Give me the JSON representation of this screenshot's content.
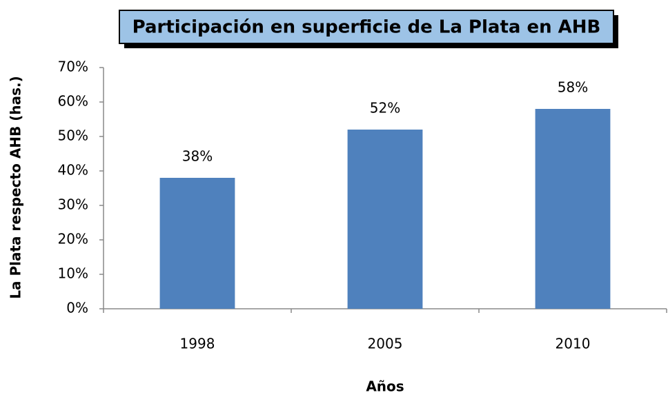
{
  "chart_data": {
    "type": "bar",
    "title": "Participación en superficie de La Plata en AHB",
    "x_label": "Años",
    "y_label": "La Plata respecto AHB (has.)",
    "categories": [
      "1998",
      "2005",
      "2010"
    ],
    "values": [
      38,
      52,
      58
    ],
    "value_labels": [
      "38%",
      "52%",
      "58%"
    ],
    "color": "#4f81bd",
    "ylim": [
      0,
      70
    ],
    "yticks": [
      {
        "value": 0,
        "label": "0%"
      },
      {
        "value": 10,
        "label": "10%"
      },
      {
        "value": 20,
        "label": "20%"
      },
      {
        "value": 30,
        "label": "30%"
      },
      {
        "value": 40,
        "label": "40%"
      },
      {
        "value": 50,
        "label": "50%"
      },
      {
        "value": 60,
        "label": "60%"
      },
      {
        "value": 70,
        "label": "70%"
      }
    ],
    "grid": false
  }
}
